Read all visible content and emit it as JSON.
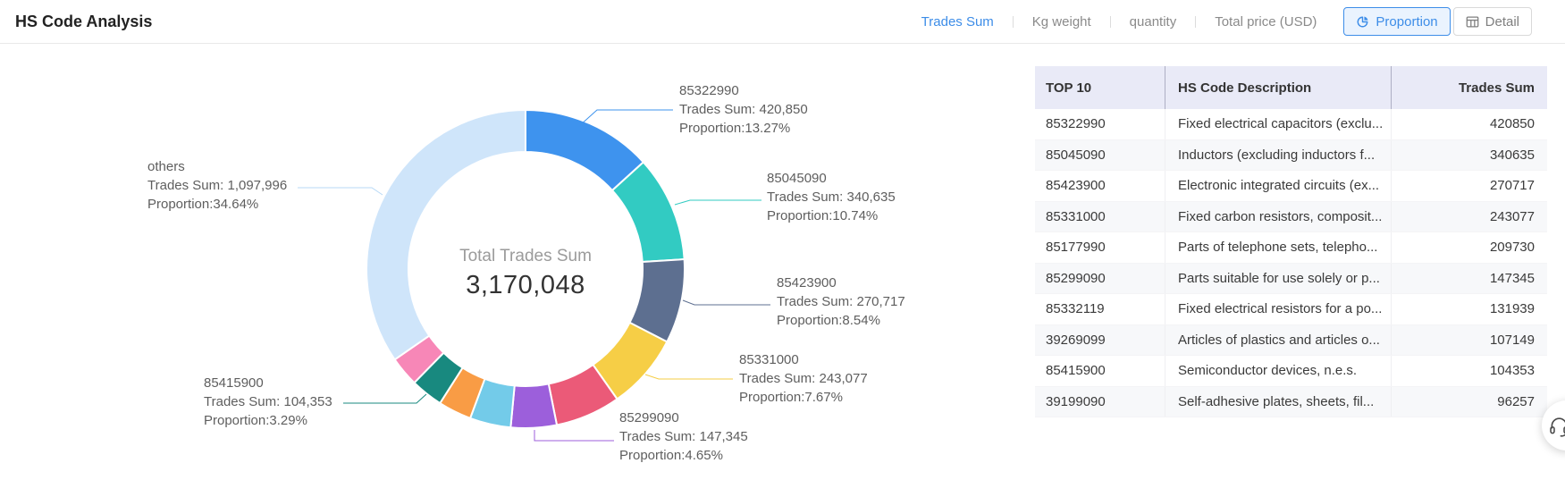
{
  "page_title": "HS Code Analysis",
  "nav": {
    "metrics": [
      {
        "label": "Trades Sum",
        "active": true
      },
      {
        "label": "Kg weight",
        "active": false
      },
      {
        "label": "quantity",
        "active": false
      },
      {
        "label": "Total price (USD)",
        "active": false
      }
    ],
    "view_buttons": [
      {
        "label": "Proportion",
        "icon": "pie-chart-icon",
        "active": true
      },
      {
        "label": "Detail",
        "icon": "table-icon",
        "active": false
      }
    ]
  },
  "chart_data": {
    "type": "pie",
    "title": "HS Code Analysis - Trades Sum Proportion",
    "center_label": "Total Trades Sum",
    "center_value": "3,170,048",
    "total": 3170048,
    "label_format": {
      "value_prefix": "Trades Sum: ",
      "proportion_prefix": "Proportion:"
    },
    "legend_position": "none",
    "slices": [
      {
        "name": "85322990",
        "value": 420850,
        "proportion": "13.27%",
        "color": "#3E93EE",
        "labeled": true
      },
      {
        "name": "85045090",
        "value": 340635,
        "proportion": "10.74%",
        "color": "#32CBC2",
        "labeled": true
      },
      {
        "name": "85423900",
        "value": 270717,
        "proportion": "8.54%",
        "color": "#5D6F90",
        "labeled": true
      },
      {
        "name": "85331000",
        "value": 243077,
        "proportion": "7.67%",
        "color": "#F6CE46",
        "labeled": true
      },
      {
        "name": "85177990",
        "value": 209730,
        "proportion": "6.62%",
        "color": "#EB5A78",
        "labeled": false
      },
      {
        "name": "85299090",
        "value": 147345,
        "proportion": "4.65%",
        "color": "#9C5FDB",
        "labeled": true
      },
      {
        "name": "85332119",
        "value": 131939,
        "proportion": "4.16%",
        "color": "#73CBE9",
        "labeled": false
      },
      {
        "name": "39269099",
        "value": 107149,
        "proportion": "3.38%",
        "color": "#F99C45",
        "labeled": false
      },
      {
        "name": "85415900",
        "value": 104353,
        "proportion": "3.29%",
        "color": "#18897F",
        "labeled": true
      },
      {
        "name": "39199090",
        "value": 96257,
        "proportion": "3.04%",
        "color": "#F787B7",
        "labeled": false
      },
      {
        "name": "others",
        "value": 1097996,
        "proportion": "34.64%",
        "color": "#CFE5FA",
        "labeled": true
      }
    ]
  },
  "table": {
    "columns": [
      "TOP 10",
      "HS Code Description",
      "Trades Sum"
    ],
    "rows": [
      {
        "code": "85322990",
        "description": "Fixed electrical capacitors (exclu...",
        "trades_sum": 420850
      },
      {
        "code": "85045090",
        "description": "Inductors (excluding inductors f...",
        "trades_sum": 340635
      },
      {
        "code": "85423900",
        "description": "Electronic integrated circuits (ex...",
        "trades_sum": 270717
      },
      {
        "code": "85331000",
        "description": "Fixed carbon resistors, composit...",
        "trades_sum": 243077
      },
      {
        "code": "85177990",
        "description": "Parts of telephone sets, telepho...",
        "trades_sum": 209730
      },
      {
        "code": "85299090",
        "description": "Parts suitable for use solely or p...",
        "trades_sum": 147345
      },
      {
        "code": "85332119",
        "description": "Fixed electrical resistors for a po...",
        "trades_sum": 131939
      },
      {
        "code": "39269099",
        "description": "Articles of plastics and articles o...",
        "trades_sum": 107149
      },
      {
        "code": "85415900",
        "description": "Semiconductor devices, n.e.s.",
        "trades_sum": 104353
      },
      {
        "code": "39199090",
        "description": "Self-adhesive plates, sheets, fil...",
        "trades_sum": 96257
      }
    ]
  },
  "floating_button": {
    "icon": "headset-icon"
  },
  "colors": {
    "accent": "#3D8DE8",
    "accent_bg": "#EAF3FE",
    "table_header_bg": "#E9EAF7",
    "muted_text": "#8A8A8A",
    "others_leader": "#B7D9F6"
  }
}
